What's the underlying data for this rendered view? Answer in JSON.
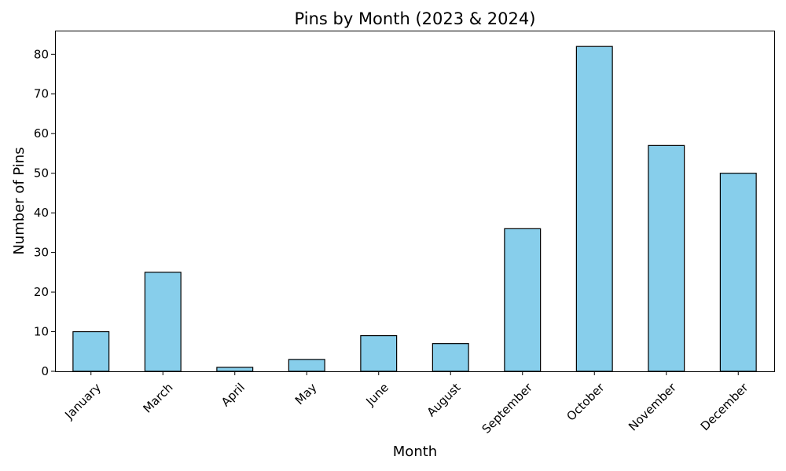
{
  "chart_data": {
    "type": "bar",
    "title": "Pins by Month (2023 & 2024)",
    "xlabel": "Month",
    "ylabel": "Number of Pins",
    "categories": [
      "January",
      "March",
      "April",
      "May",
      "June",
      "August",
      "September",
      "October",
      "November",
      "December"
    ],
    "values": [
      10,
      25,
      1,
      3,
      9,
      7,
      36,
      82,
      57,
      50
    ],
    "ylim": [
      0,
      86
    ],
    "yticks": [
      0,
      10,
      20,
      30,
      40,
      50,
      60,
      70,
      80
    ],
    "grid": false,
    "legend": "none",
    "bar_color": "#87ceeb",
    "edge_color": "#000000"
  }
}
